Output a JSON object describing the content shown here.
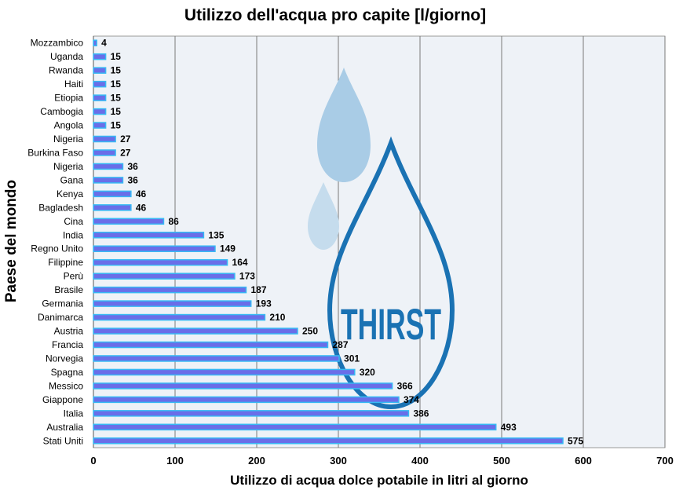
{
  "chart_data": {
    "type": "bar",
    "orientation": "horizontal",
    "title": "Utilizzo dell'acqua pro capite [l/giorno]",
    "xlabel": "Utilizzo di acqua dolce potabile in litri al giorno",
    "ylabel": "Paese del mondo",
    "categories": [
      "Mozzambico",
      "Uganda",
      "Rwanda",
      "Haiti",
      "Etiopia",
      "Cambogia",
      "Angola",
      "Nigeria",
      "Burkina Faso",
      "Nigeria",
      "Gana",
      "Kenya",
      "Bagladesh",
      "Cina",
      "India",
      "Regno Unito",
      "Filippine",
      "Perù",
      "Brasile",
      "Germania",
      "Danimarca",
      "Austria",
      "Francia",
      "Norvegia",
      "Spagna",
      "Messico",
      "Giappone",
      "Italia",
      "Australia",
      "Stati Uniti"
    ],
    "values": [
      4,
      15,
      15,
      15,
      15,
      15,
      15,
      27,
      27,
      36,
      36,
      46,
      46,
      86,
      135,
      149,
      164,
      173,
      187,
      193,
      210,
      250,
      287,
      301,
      320,
      366,
      374,
      386,
      493,
      575
    ],
    "xlim": [
      0,
      700
    ],
    "xticks": [
      0,
      100,
      200,
      300,
      400,
      500,
      600,
      700
    ],
    "grid": "vertical",
    "data_labels": true,
    "colors": {
      "bar": "#6a6ee8",
      "bar_edge": "#37b9f4",
      "plot_bg": "#eef2f7",
      "grid": "#7a7a7a"
    }
  },
  "watermark": {
    "text": "THIRST",
    "colors": {
      "drop_outline": "#1a72b3",
      "drop_light": "#a9cce6",
      "drop_lighter": "#c5dced"
    }
  }
}
